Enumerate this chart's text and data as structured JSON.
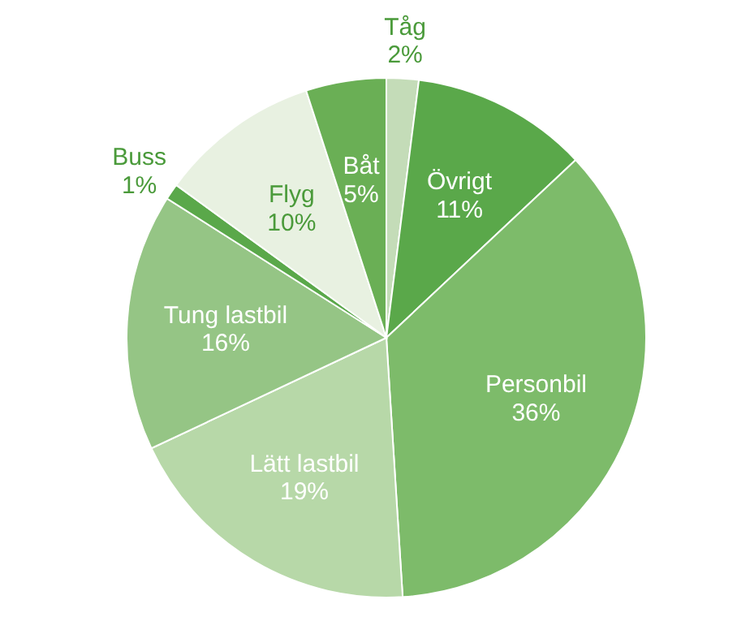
{
  "chart_data": {
    "type": "pie",
    "categories": [
      "Tåg",
      "Övrigt",
      "Personbil",
      "Lätt lastbil",
      "Tung lastbil",
      "Buss",
      "Flyg",
      "Båt"
    ],
    "values": [
      2,
      11,
      36,
      19,
      16,
      1,
      10,
      5
    ],
    "value_labels": [
      "2%",
      "11%",
      "36%",
      "19%",
      "16%",
      "1%",
      "10%",
      "5%"
    ],
    "colors": [
      "#c4dcb8",
      "#5aa84a",
      "#7dbb6a",
      "#b7d8a8",
      "#95c585",
      "#5aa84a",
      "#e8f1e1",
      "#6aaf55"
    ]
  }
}
